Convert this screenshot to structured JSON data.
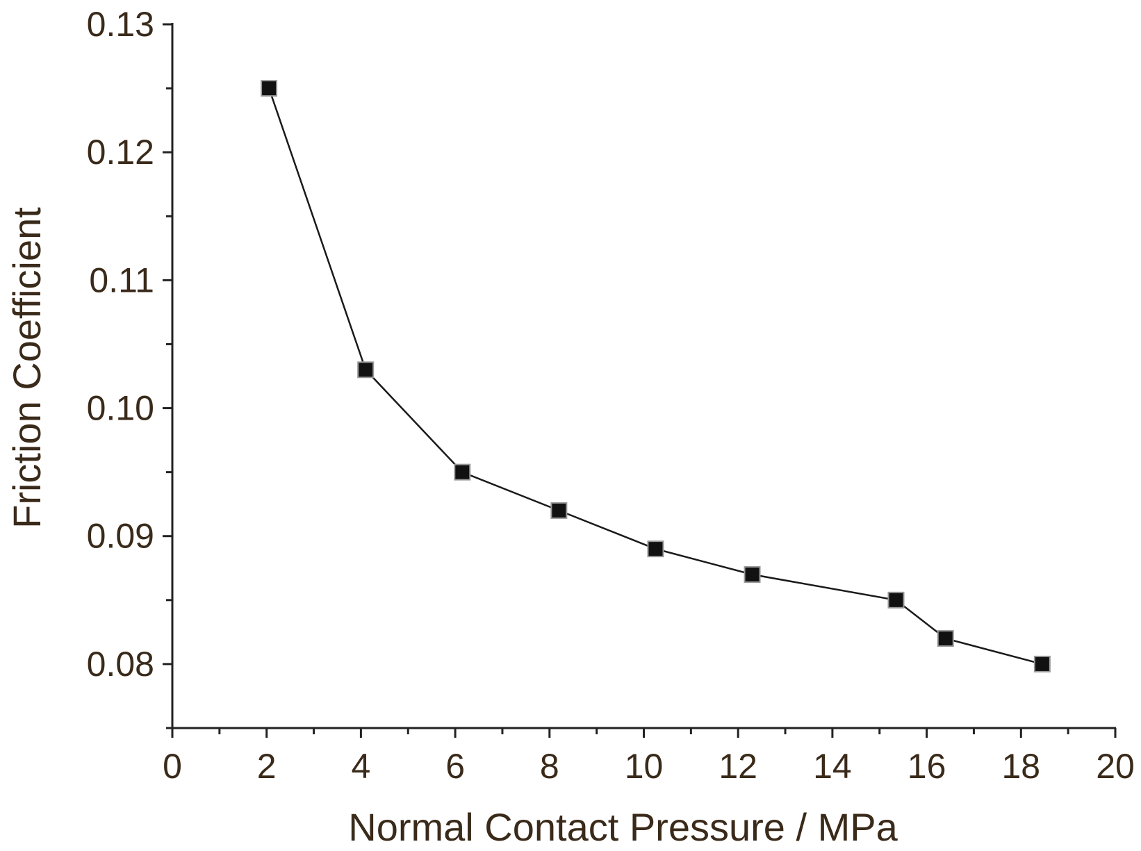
{
  "chart_data": {
    "type": "line",
    "title": "",
    "xlabel": "Normal Contact Pressure / MPa",
    "ylabel": "Friction Coefficient",
    "xlim": [
      0,
      20
    ],
    "ylim": [
      0.075,
      0.13
    ],
    "x_ticks": [
      0,
      2,
      4,
      6,
      8,
      10,
      12,
      14,
      16,
      18,
      20
    ],
    "x_tick_labels": [
      "0",
      "2",
      "4",
      "6",
      "8",
      "10",
      "12",
      "14",
      "16",
      "18",
      "20"
    ],
    "y_ticks": [
      0.08,
      0.09,
      0.1,
      0.11,
      0.12,
      0.13
    ],
    "y_tick_labels": [
      "0.08",
      "0.09",
      "0.10",
      "0.11",
      "0.12",
      "0.13"
    ],
    "x_minor_step": 1,
    "y_minor_step": 0.005,
    "grid": false,
    "marker": "square",
    "colors": {
      "line": "#1a1a1a",
      "marker_fill": "#111111",
      "marker_edge": "#9a9a9a",
      "axis": "#222222",
      "text": "#3a2a1a"
    },
    "series": [
      {
        "name": "Friction Coefficient",
        "x": [
          2.05,
          4.1,
          6.15,
          8.2,
          10.25,
          12.3,
          15.35,
          16.4,
          18.45
        ],
        "y": [
          0.125,
          0.103,
          0.095,
          0.092,
          0.089,
          0.087,
          0.085,
          0.082,
          0.08
        ]
      }
    ]
  }
}
